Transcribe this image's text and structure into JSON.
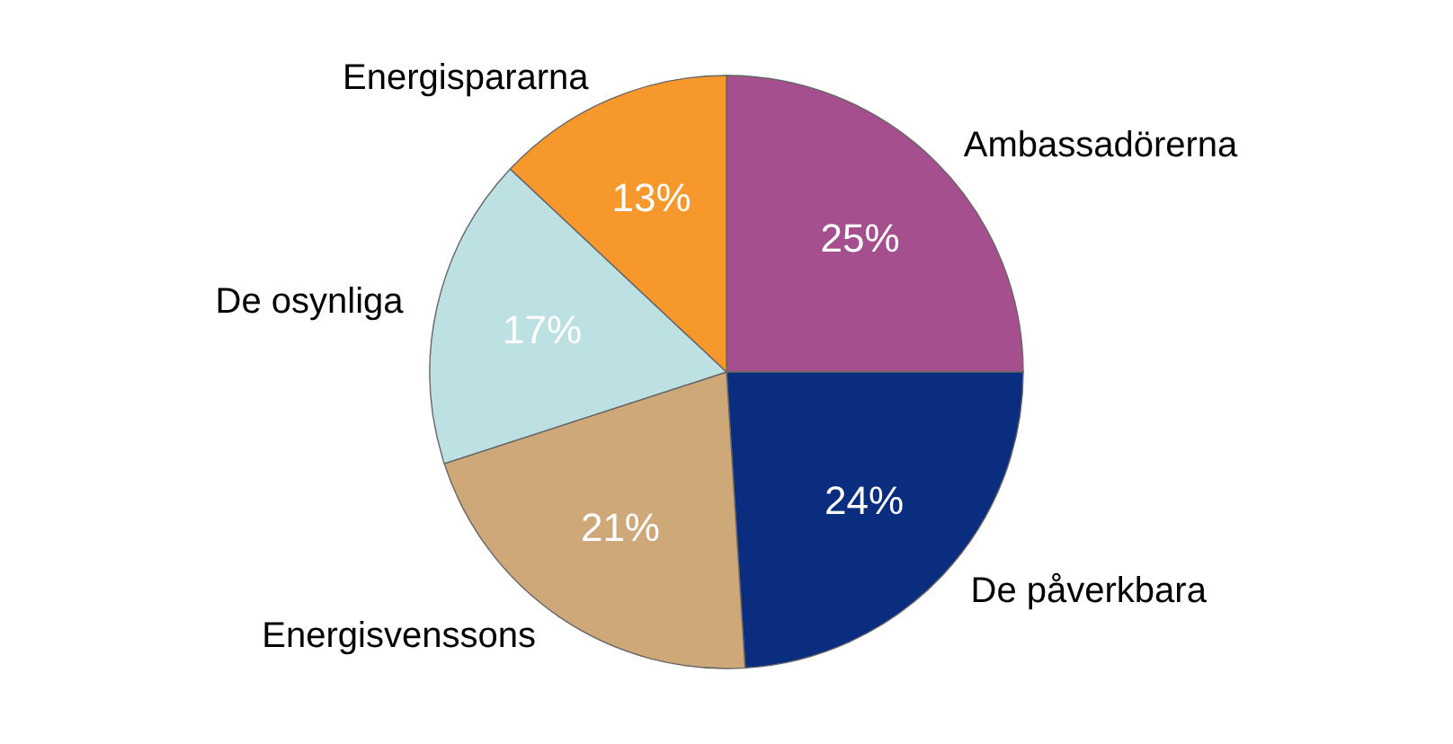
{
  "chart_data": {
    "type": "pie",
    "categories": [
      "Ambassadörerna",
      "De påverkbara",
      "Energisvenssons",
      "De osynliga",
      "Energispararna"
    ],
    "values": [
      25,
      24,
      21,
      17,
      13
    ],
    "value_labels": [
      "25%",
      "24%",
      "21%",
      "17%",
      "13%"
    ],
    "colors": [
      "#a64f8f",
      "#0b2d80",
      "#cfa87a",
      "#bde0e3",
      "#f6982c"
    ],
    "legend": false
  }
}
